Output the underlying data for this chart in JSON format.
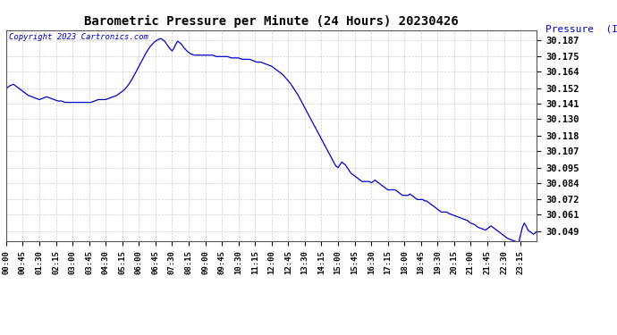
{
  "title": "Barometric Pressure per Minute (24 Hours) 20230426",
  "ylabel": "Pressure  (Inches/Hg)",
  "copyright": "Copyright 2023 Cartronics.com",
  "line_color": "#0000cc",
  "background_color": "#ffffff",
  "grid_color": "#bbbbbb",
  "ylabel_color": "#0000cc",
  "copyright_color": "#0000cc",
  "yticks": [
    30.049,
    30.061,
    30.072,
    30.084,
    30.095,
    30.107,
    30.118,
    30.13,
    30.141,
    30.152,
    30.164,
    30.175,
    30.187
  ],
  "ylim_low": 30.042,
  "ylim_high": 30.194,
  "xlim_low": 0,
  "xlim_high": 1439,
  "xtick_labels": [
    "00:00",
    "00:45",
    "01:30",
    "02:15",
    "03:00",
    "03:45",
    "04:30",
    "05:15",
    "06:00",
    "06:45",
    "07:30",
    "08:15",
    "09:00",
    "09:45",
    "10:30",
    "11:15",
    "12:00",
    "12:45",
    "13:30",
    "14:15",
    "15:00",
    "15:45",
    "16:30",
    "17:15",
    "18:00",
    "18:45",
    "19:30",
    "20:15",
    "21:00",
    "21:45",
    "22:30",
    "23:15"
  ],
  "curve_pts": [
    [
      0,
      30.152
    ],
    [
      10,
      30.154
    ],
    [
      20,
      30.155
    ],
    [
      30,
      30.153
    ],
    [
      40,
      30.151
    ],
    [
      50,
      30.149
    ],
    [
      60,
      30.147
    ],
    [
      70,
      30.146
    ],
    [
      80,
      30.145
    ],
    [
      90,
      30.144
    ],
    [
      100,
      30.145
    ],
    [
      110,
      30.146
    ],
    [
      120,
      30.145
    ],
    [
      130,
      30.144
    ],
    [
      140,
      30.143
    ],
    [
      150,
      30.143
    ],
    [
      160,
      30.142
    ],
    [
      170,
      30.142
    ],
    [
      180,
      30.142
    ],
    [
      190,
      30.142
    ],
    [
      200,
      30.142
    ],
    [
      210,
      30.142
    ],
    [
      220,
      30.142
    ],
    [
      230,
      30.142
    ],
    [
      240,
      30.143
    ],
    [
      250,
      30.144
    ],
    [
      260,
      30.144
    ],
    [
      270,
      30.144
    ],
    [
      280,
      30.145
    ],
    [
      290,
      30.146
    ],
    [
      300,
      30.147
    ],
    [
      310,
      30.149
    ],
    [
      320,
      30.151
    ],
    [
      330,
      30.154
    ],
    [
      340,
      30.158
    ],
    [
      350,
      30.163
    ],
    [
      360,
      30.168
    ],
    [
      370,
      30.173
    ],
    [
      380,
      30.178
    ],
    [
      390,
      30.182
    ],
    [
      400,
      30.185
    ],
    [
      410,
      30.187
    ],
    [
      420,
      30.188
    ],
    [
      430,
      30.186
    ],
    [
      440,
      30.182
    ],
    [
      450,
      30.179
    ],
    [
      455,
      30.181
    ],
    [
      460,
      30.184
    ],
    [
      465,
      30.186
    ],
    [
      470,
      30.185
    ],
    [
      475,
      30.184
    ],
    [
      480,
      30.182
    ],
    [
      490,
      30.179
    ],
    [
      500,
      30.177
    ],
    [
      510,
      30.176
    ],
    [
      520,
      30.176
    ],
    [
      530,
      30.176
    ],
    [
      540,
      30.176
    ],
    [
      550,
      30.176
    ],
    [
      560,
      30.176
    ],
    [
      570,
      30.175
    ],
    [
      580,
      30.175
    ],
    [
      590,
      30.175
    ],
    [
      600,
      30.175
    ],
    [
      610,
      30.174
    ],
    [
      620,
      30.174
    ],
    [
      630,
      30.174
    ],
    [
      640,
      30.173
    ],
    [
      650,
      30.173
    ],
    [
      660,
      30.173
    ],
    [
      670,
      30.172
    ],
    [
      680,
      30.171
    ],
    [
      690,
      30.171
    ],
    [
      700,
      30.17
    ],
    [
      710,
      30.169
    ],
    [
      720,
      30.168
    ],
    [
      730,
      30.166
    ],
    [
      740,
      30.164
    ],
    [
      750,
      30.162
    ],
    [
      760,
      30.159
    ],
    [
      770,
      30.156
    ],
    [
      780,
      30.152
    ],
    [
      790,
      30.148
    ],
    [
      800,
      30.143
    ],
    [
      810,
      30.138
    ],
    [
      820,
      30.133
    ],
    [
      830,
      30.128
    ],
    [
      840,
      30.123
    ],
    [
      850,
      30.118
    ],
    [
      860,
      30.113
    ],
    [
      870,
      30.108
    ],
    [
      880,
      30.103
    ],
    [
      890,
      30.098
    ],
    [
      895,
      30.096
    ],
    [
      900,
      30.095
    ],
    [
      905,
      30.097
    ],
    [
      910,
      30.099
    ],
    [
      915,
      30.098
    ],
    [
      920,
      30.097
    ],
    [
      925,
      30.095
    ],
    [
      930,
      30.093
    ],
    [
      935,
      30.091
    ],
    [
      940,
      30.09
    ],
    [
      945,
      30.089
    ],
    [
      950,
      30.088
    ],
    [
      955,
      30.087
    ],
    [
      960,
      30.086
    ],
    [
      965,
      30.085
    ],
    [
      970,
      30.085
    ],
    [
      975,
      30.085
    ],
    [
      980,
      30.085
    ],
    [
      985,
      30.085
    ],
    [
      990,
      30.084
    ],
    [
      995,
      30.085
    ],
    [
      1000,
      30.086
    ],
    [
      1005,
      30.085
    ],
    [
      1010,
      30.084
    ],
    [
      1015,
      30.083
    ],
    [
      1020,
      30.082
    ],
    [
      1025,
      30.081
    ],
    [
      1030,
      30.08
    ],
    [
      1035,
      30.079
    ],
    [
      1040,
      30.079
    ],
    [
      1045,
      30.079
    ],
    [
      1050,
      30.079
    ],
    [
      1055,
      30.079
    ],
    [
      1060,
      30.078
    ],
    [
      1065,
      30.077
    ],
    [
      1070,
      30.076
    ],
    [
      1075,
      30.075
    ],
    [
      1080,
      30.075
    ],
    [
      1085,
      30.075
    ],
    [
      1090,
      30.075
    ],
    [
      1095,
      30.076
    ],
    [
      1100,
      30.075
    ],
    [
      1105,
      30.074
    ],
    [
      1110,
      30.073
    ],
    [
      1115,
      30.072
    ],
    [
      1120,
      30.072
    ],
    [
      1125,
      30.072
    ],
    [
      1130,
      30.072
    ],
    [
      1135,
      30.071
    ],
    [
      1140,
      30.071
    ],
    [
      1145,
      30.07
    ],
    [
      1150,
      30.069
    ],
    [
      1155,
      30.068
    ],
    [
      1160,
      30.067
    ],
    [
      1165,
      30.066
    ],
    [
      1170,
      30.065
    ],
    [
      1175,
      30.064
    ],
    [
      1180,
      30.063
    ],
    [
      1185,
      30.063
    ],
    [
      1190,
      30.063
    ],
    [
      1195,
      30.063
    ],
    [
      1200,
      30.062
    ],
    [
      1210,
      30.061
    ],
    [
      1220,
      30.06
    ],
    [
      1230,
      30.059
    ],
    [
      1240,
      30.058
    ],
    [
      1250,
      30.057
    ],
    [
      1260,
      30.055
    ],
    [
      1270,
      30.054
    ],
    [
      1280,
      30.052
    ],
    [
      1290,
      30.051
    ],
    [
      1300,
      30.05
    ],
    [
      1310,
      30.052
    ],
    [
      1315,
      30.053
    ],
    [
      1320,
      30.052
    ],
    [
      1325,
      30.051
    ],
    [
      1330,
      30.05
    ],
    [
      1340,
      30.048
    ],
    [
      1350,
      30.046
    ],
    [
      1360,
      30.044
    ],
    [
      1370,
      30.043
    ],
    [
      1380,
      30.042
    ],
    [
      1390,
      30.041
    ],
    [
      1400,
      30.052
    ],
    [
      1405,
      30.055
    ],
    [
      1410,
      30.053
    ],
    [
      1415,
      30.05
    ],
    [
      1420,
      30.049
    ],
    [
      1430,
      30.047
    ],
    [
      1439,
      30.049
    ]
  ]
}
